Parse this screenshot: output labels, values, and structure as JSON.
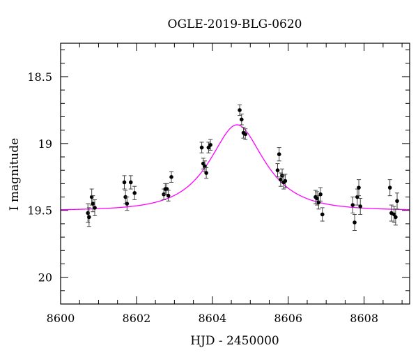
{
  "chart_data": {
    "type": "scatter",
    "title": "OGLE-2019-BLG-0620",
    "xlabel": "HJD - 2450000",
    "ylabel": "I magnitude",
    "xlim": [
      8600,
      8609.2
    ],
    "ylim": [
      20.2,
      18.25
    ],
    "y_inverted": true,
    "xticks": [
      8600,
      8602,
      8604,
      8606,
      8608
    ],
    "xtick_labels": [
      "8600",
      "8602",
      "8604",
      "8606",
      "8608"
    ],
    "yticks": [
      18.5,
      19,
      19.5,
      20
    ],
    "ytick_labels": [
      "18.5",
      "19",
      "19.5",
      "20"
    ],
    "grid": false,
    "series": [
      {
        "kind": "points-with-errorbars",
        "color": "#000000",
        "x": [
          8600.72,
          8600.75,
          8600.82,
          8600.85,
          8600.9,
          8601.68,
          8601.71,
          8601.75,
          8601.85,
          8601.95,
          8602.72,
          8602.76,
          8602.8,
          8602.84,
          8602.92,
          8603.72,
          8603.76,
          8603.8,
          8603.84,
          8603.9,
          8603.95,
          8604.72,
          8604.77,
          8604.82,
          8604.87,
          8605.72,
          8605.76,
          8605.8,
          8605.84,
          8605.88,
          8605.92,
          8606.72,
          8606.76,
          8606.8,
          8606.85,
          8606.9,
          8607.7,
          8607.75,
          8607.82,
          8607.86,
          8607.9,
          8608.68,
          8608.72,
          8608.79,
          8608.83,
          8608.87
        ],
        "y": [
          19.52,
          19.55,
          19.4,
          19.45,
          19.48,
          19.29,
          19.4,
          19.45,
          19.29,
          19.37,
          19.38,
          19.34,
          19.34,
          19.39,
          19.25,
          19.03,
          19.15,
          19.17,
          19.22,
          19.03,
          19.01,
          18.75,
          18.82,
          18.92,
          18.93,
          19.2,
          19.08,
          19.27,
          19.24,
          19.29,
          19.28,
          19.4,
          19.41,
          19.44,
          19.38,
          19.53,
          19.46,
          19.59,
          19.4,
          19.33,
          19.47,
          19.33,
          19.52,
          19.53,
          19.55,
          19.43
        ],
        "yerr": [
          0.07,
          0.07,
          0.06,
          0.06,
          0.06,
          0.05,
          0.05,
          0.05,
          0.05,
          0.05,
          0.04,
          0.04,
          0.04,
          0.04,
          0.04,
          0.04,
          0.04,
          0.04,
          0.04,
          0.04,
          0.04,
          0.04,
          0.04,
          0.04,
          0.04,
          0.05,
          0.05,
          0.05,
          0.05,
          0.05,
          0.05,
          0.05,
          0.05,
          0.05,
          0.05,
          0.05,
          0.06,
          0.06,
          0.06,
          0.06,
          0.06,
          0.06,
          0.06,
          0.06,
          0.06,
          0.06
        ]
      },
      {
        "kind": "model-curve",
        "color": "#ff00ff",
        "t0": 8604.65,
        "peak_mag": 18.86,
        "baseline_mag": 19.5
      }
    ]
  }
}
